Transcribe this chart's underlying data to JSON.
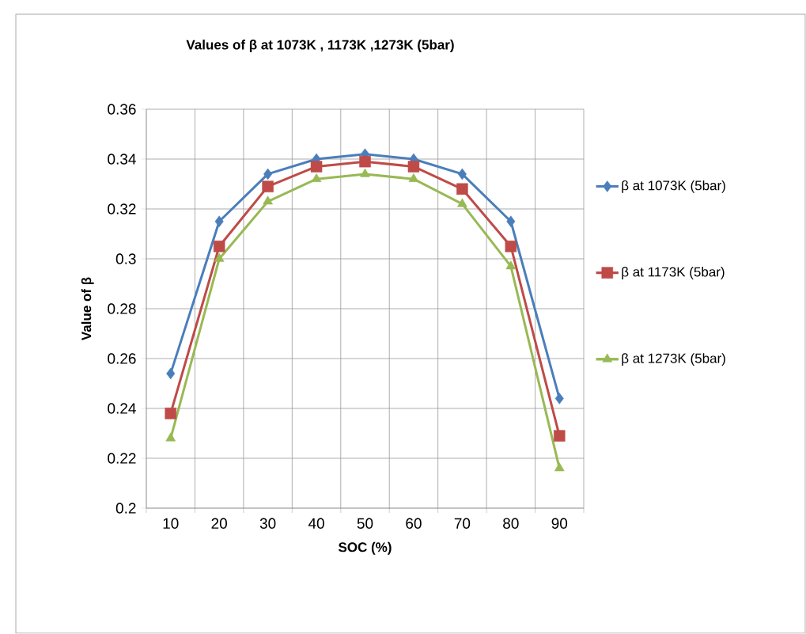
{
  "chart_data": {
    "type": "line",
    "title": "Values of β at 1073K , 1173K ,1273K (5bar)",
    "xlabel": "SOC (%)",
    "ylabel": "Value of β",
    "categories": [
      "10",
      "20",
      "30",
      "40",
      "50",
      "60",
      "70",
      "80",
      "90"
    ],
    "series": [
      {
        "name": "β at 1073K (5bar)",
        "color": "#4a7ebb",
        "marker": "diamond",
        "values": [
          0.254,
          0.315,
          0.334,
          0.34,
          0.342,
          0.34,
          0.334,
          0.315,
          0.244
        ]
      },
      {
        "name": "β at 1173K (5bar)",
        "color": "#be4b48",
        "marker": "square",
        "values": [
          0.238,
          0.305,
          0.329,
          0.337,
          0.339,
          0.337,
          0.328,
          0.305,
          0.229
        ]
      },
      {
        "name": "β at 1273K (5bar)",
        "color": "#98b954",
        "marker": "triangle",
        "values": [
          0.228,
          0.3,
          0.323,
          0.332,
          0.334,
          0.332,
          0.322,
          0.297,
          0.216
        ]
      }
    ],
    "ylim": [
      0.2,
      0.36
    ],
    "yticks": [
      0.2,
      0.22,
      0.24,
      0.26,
      0.28,
      0.3,
      0.32,
      0.34,
      0.36
    ],
    "grid": true,
    "legend": "right"
  }
}
